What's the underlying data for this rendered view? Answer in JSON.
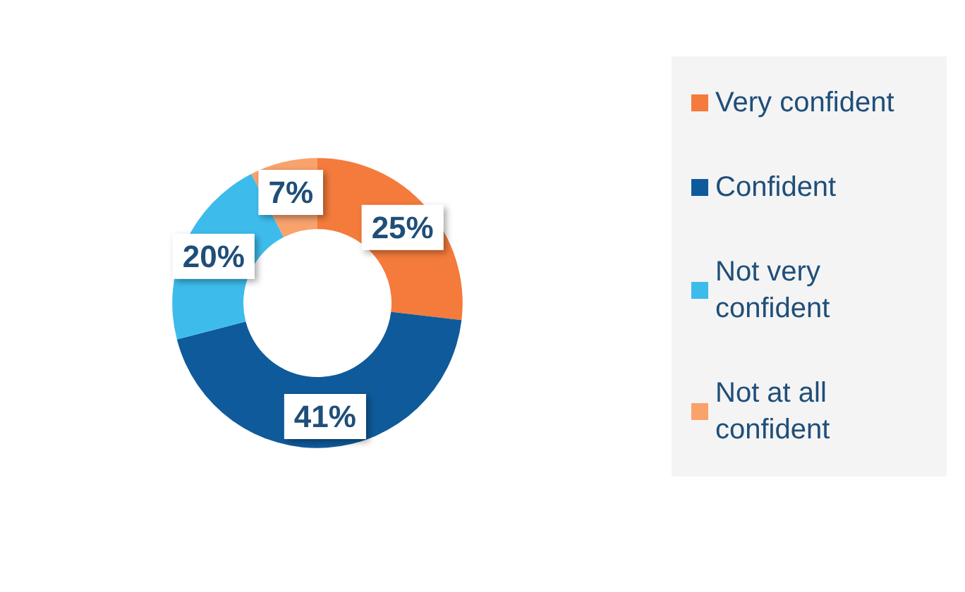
{
  "chart_data": {
    "type": "donut",
    "categories": [
      "Very confident",
      "Confident",
      "Not very confident",
      "Not at all confident"
    ],
    "values": [
      25,
      41,
      20,
      7
    ],
    "value_labels": [
      "25%",
      "41%",
      "20%",
      "7%"
    ],
    "colors": [
      "#f47b3b",
      "#0f5a9a",
      "#3dbcec",
      "#f9a26c"
    ],
    "legend": "right"
  }
}
